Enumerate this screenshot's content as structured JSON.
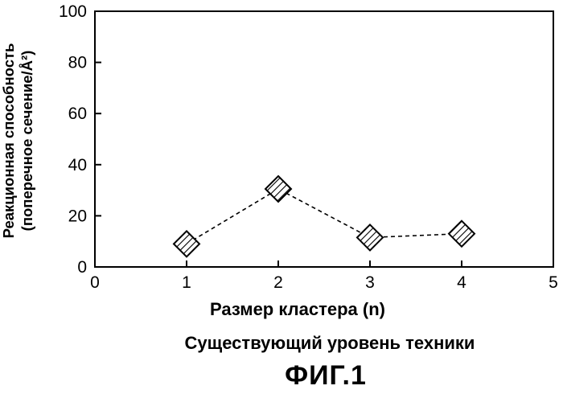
{
  "chart_data": {
    "type": "line",
    "x": [
      1,
      2,
      3,
      4
    ],
    "series": [
      {
        "values": [
          9,
          30.5,
          11.5,
          13
        ]
      }
    ],
    "xlim": [
      0,
      5
    ],
    "ylim": [
      0,
      100
    ],
    "xticks": [
      0,
      1,
      2,
      3,
      4,
      5
    ],
    "yticks": [
      0,
      20,
      40,
      60,
      80,
      100
    ],
    "xlabel": "Размер кластера (n)",
    "ylabel_line1": "Реакционная способность",
    "ylabel_line2": "(поперечное сечение/Å²)",
    "marker": "hatched-diamond",
    "line_style": "dashed",
    "grid": false,
    "colors": {
      "line": "#000000",
      "marker_fill": "#ffffff",
      "hatch": "#000000"
    }
  },
  "caption": "Существующий уровень техники",
  "figure_label": "ФИГ.1"
}
